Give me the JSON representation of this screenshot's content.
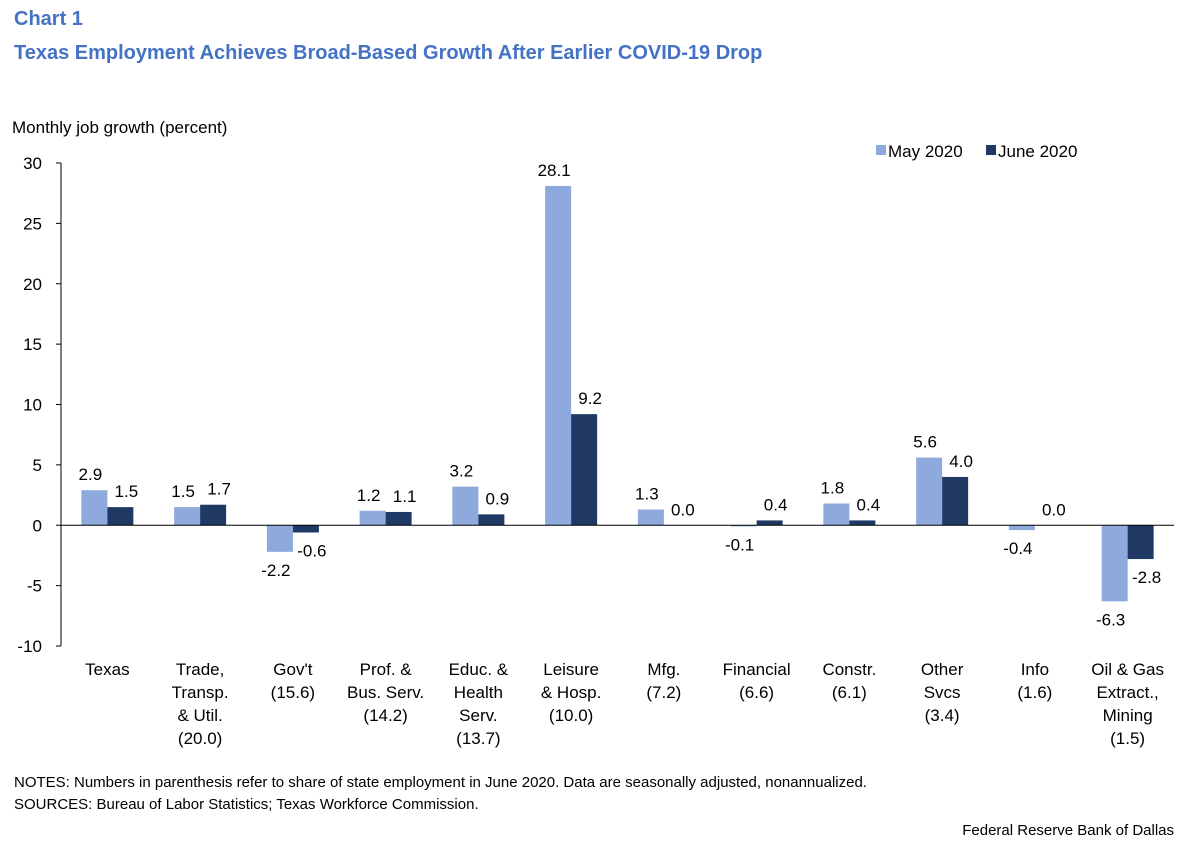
{
  "header": {
    "chart_label": "Chart 1",
    "title": "Texas Employment  Achieves Broad-Based Growth After Earlier COVID-19 Drop"
  },
  "footer": {
    "notes": "NOTES: Numbers in parenthesis refer to share of state employment  in June 2020. Data are seasonally adjusted, nonannualized.",
    "sources": "SOURCES: Bureau of Labor Statistics; Texas Workforce Commission.",
    "credit": "Federal Reserve Bank of Dallas"
  },
  "chart_data": {
    "type": "bar",
    "title": "Texas Employment  Achieves Broad-Based Growth After Earlier COVID-19 Drop",
    "ylabel": "Monthly job growth (percent)",
    "xlabel": "",
    "ylim": [
      -10,
      30
    ],
    "yticks": [
      -10,
      -5,
      0,
      5,
      10,
      15,
      20,
      25,
      30
    ],
    "grid": false,
    "legend_position": "top-right",
    "categories": [
      [
        "Texas"
      ],
      [
        "Trade,",
        "Transp.",
        "& Util.",
        "(20.0)"
      ],
      [
        "Gov't",
        "(15.6)"
      ],
      [
        "Prof. &",
        "Bus. Serv.",
        "(14.2)"
      ],
      [
        "Educ. &",
        "Health",
        "Serv.",
        "(13.7)"
      ],
      [
        "Leisure",
        "& Hosp.",
        "(10.0)"
      ],
      [
        "Mfg.",
        "(7.2)"
      ],
      [
        "Financial",
        "(6.6)"
      ],
      [
        "Constr.",
        "(6.1)"
      ],
      [
        "Other",
        "Svcs",
        "(3.4)"
      ],
      [
        "Info",
        "(1.6)"
      ],
      [
        "Oil & Gas",
        "Extract.,",
        "Mining",
        "(1.5)"
      ]
    ],
    "series": [
      {
        "name": "May 2020",
        "color": "#8EA9DB",
        "values": [
          2.9,
          1.5,
          -2.2,
          1.2,
          3.2,
          28.1,
          1.3,
          -0.1,
          1.8,
          5.6,
          -0.4,
          -6.3
        ],
        "labels": [
          "2.9",
          "1.5",
          "-2.2",
          "1.2",
          "3.2",
          "28.1",
          "1.3",
          "-0.1",
          "1.8",
          "5.6",
          "-0.4",
          "-6.3"
        ]
      },
      {
        "name": "June 2020",
        "color": "#1F3864",
        "values": [
          1.5,
          1.7,
          -0.6,
          1.1,
          0.9,
          9.2,
          0.0,
          0.4,
          0.4,
          4.0,
          0.0,
          -2.8
        ],
        "labels": [
          "1.5",
          "1.7",
          "-0.6",
          "1.1",
          "0.9",
          "9.2",
          "0.0",
          "0.4",
          "0.4",
          "4.0",
          "0.0",
          "-2.8"
        ]
      }
    ]
  }
}
